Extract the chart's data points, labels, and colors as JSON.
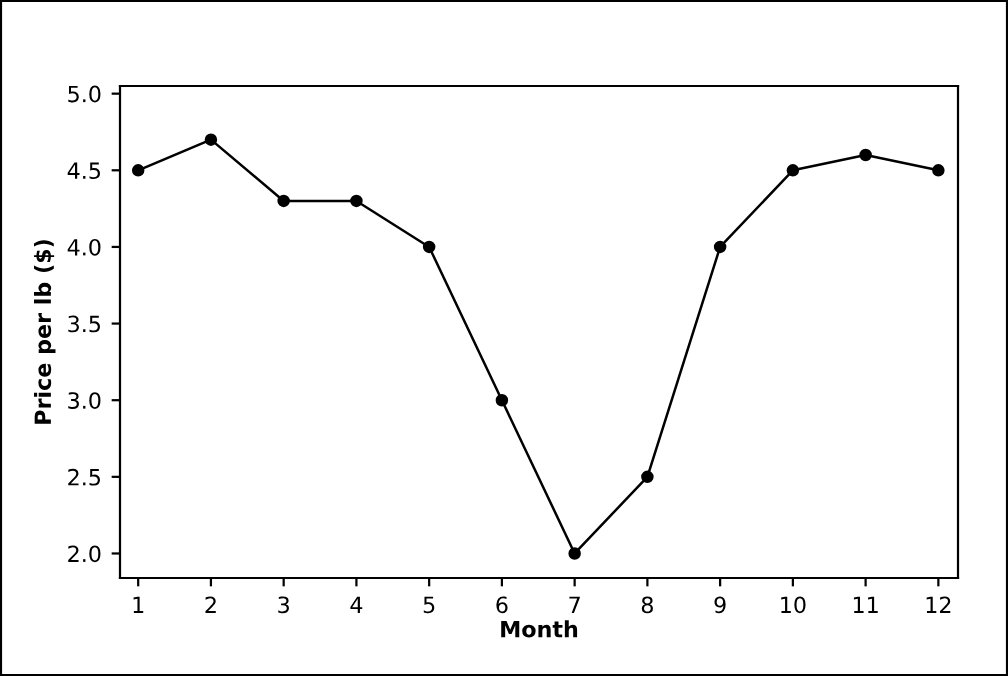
{
  "chart_data": {
    "type": "line",
    "xlabel": "Month",
    "ylabel": "Price per lb ($)",
    "x": [
      1,
      2,
      3,
      4,
      5,
      6,
      7,
      8,
      9,
      10,
      11,
      12
    ],
    "series": [
      {
        "color": "#000000",
        "values": [
          4.5,
          4.7,
          4.3,
          4.3,
          4.0,
          3.0,
          2.0,
          2.5,
          4.0,
          4.5,
          4.6,
          4.5
        ]
      }
    ],
    "xlim": [
      0.75,
      12.27
    ],
    "xticks": [
      1,
      2,
      3,
      4,
      5,
      6,
      7,
      8,
      9,
      10,
      11,
      12
    ],
    "ylim": [
      1.84,
      5.05
    ],
    "yticks": [
      {
        "value": 2.0,
        "label": "2.0"
      },
      {
        "value": 2.5,
        "label": "2.5"
      },
      {
        "value": 3.0,
        "label": "3.0"
      },
      {
        "value": 3.5,
        "label": "3.5"
      },
      {
        "value": 4.0,
        "label": "4.0"
      },
      {
        "value": 4.5,
        "label": "4.5"
      },
      {
        "value": 5.0,
        "label": "5.0"
      }
    ],
    "grid": false,
    "legend": false,
    "marker": "circle",
    "line_style": "solid"
  }
}
